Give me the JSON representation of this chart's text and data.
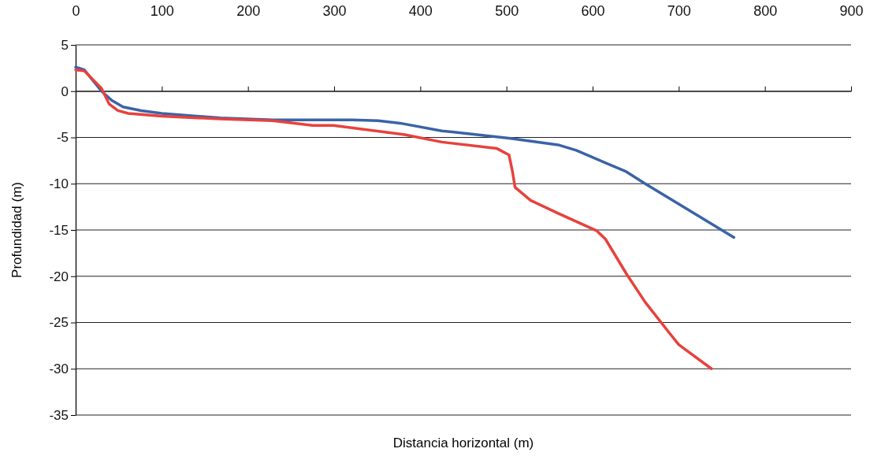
{
  "chart_data": {
    "type": "line",
    "xlabel": "Distancia horizontal (m)",
    "ylabel": "Profundidad (m)",
    "xlim": [
      0,
      900
    ],
    "xticks": [
      0,
      100,
      200,
      300,
      400,
      500,
      600,
      700,
      800,
      900
    ],
    "ylim": [
      -35,
      5
    ],
    "yticks": [
      -35,
      -30,
      -25,
      -20,
      -15,
      -10,
      -5,
      0,
      5
    ],
    "grid": "y",
    "marker": "none",
    "line_style": "solid",
    "series": [
      {
        "color": "#3a63a8",
        "x": [
          0,
          10,
          30,
          42,
          55,
          76,
          100,
          168,
          229,
          321,
          351,
          379,
          425,
          437,
          505,
          560,
          581,
          639,
          661,
          764
        ],
        "values": [
          2.6,
          2.3,
          0,
          -1.0,
          -1.7,
          -2.1,
          -2.4,
          -2.9,
          -3.1,
          -3.1,
          -3.2,
          -3.5,
          -4.3,
          -4.4,
          -5.1,
          -5.8,
          -6.4,
          -8.7,
          -10.0,
          -15.8
        ]
      },
      {
        "color": "#e8413c",
        "x": [
          0,
          10,
          30,
          39,
          49,
          61,
          100,
          168,
          229,
          275,
          299,
          382,
          425,
          489,
          503,
          507,
          510,
          528,
          560,
          605,
          615,
          639,
          661,
          688,
          700,
          738
        ],
        "values": [
          2.3,
          2.2,
          0.3,
          -1.4,
          -2.1,
          -2.4,
          -2.7,
          -3.0,
          -3.2,
          -3.7,
          -3.7,
          -4.7,
          -5.5,
          -6.2,
          -6.9,
          -8.7,
          -10.4,
          -11.8,
          -13.2,
          -15.1,
          -16.0,
          -19.7,
          -22.8,
          -26.0,
          -27.4,
          -30.0
        ]
      }
    ]
  }
}
